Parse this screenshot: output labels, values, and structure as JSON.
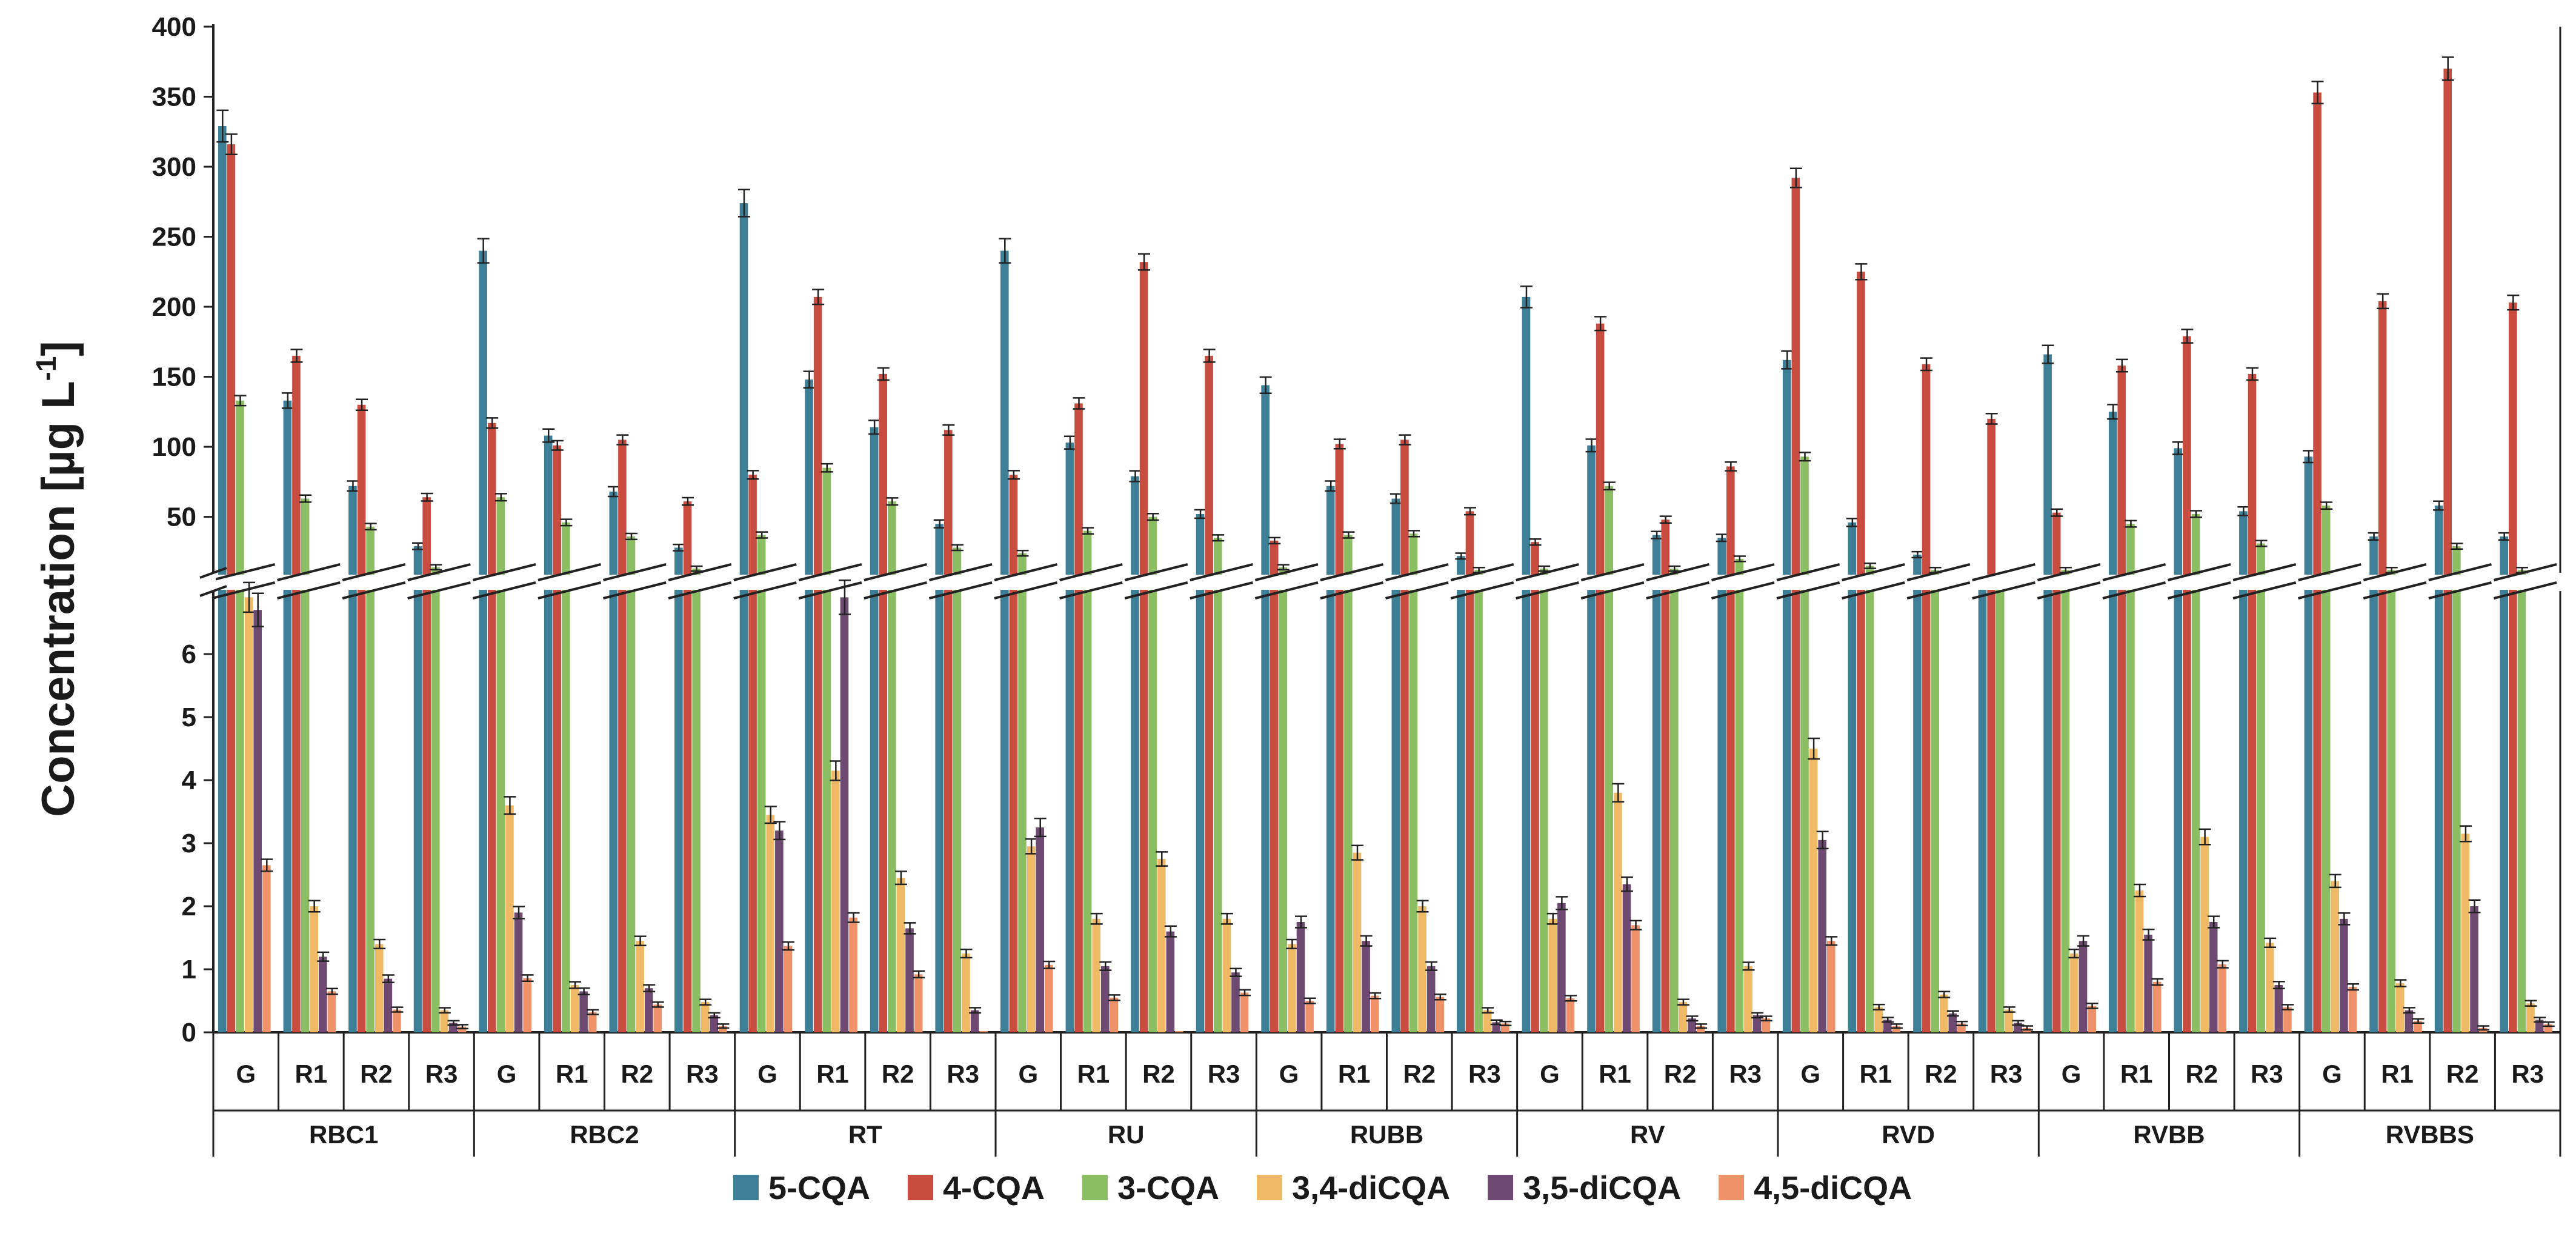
{
  "chart_data": {
    "type": "bar",
    "ylabel": "Concentration [µg L",
    "ylabel_sup": "-1",
    "axis_break": true,
    "upper_axis": {
      "ylim": [
        10,
        400
      ],
      "ticks": [
        50,
        100,
        150,
        200,
        250,
        300,
        350,
        400
      ]
    },
    "lower_axis": {
      "ylim": [
        0,
        7
      ],
      "ticks": [
        0,
        1,
        2,
        3,
        4,
        5,
        6
      ]
    },
    "group_names": [
      "RBC1",
      "RBC2",
      "RT",
      "RU",
      "RUBB",
      "RV",
      "RVD",
      "RVBB",
      "RVBBS"
    ],
    "sub_names": [
      "G",
      "R1",
      "R2",
      "R3"
    ],
    "series": [
      {
        "name": "5-CQA",
        "color": "#3d7f96",
        "values": [
          329,
          133,
          72,
          29,
          240,
          108,
          68,
          28,
          274,
          148,
          114,
          45,
          240,
          103,
          79,
          52,
          144,
          72,
          63,
          22,
          207,
          101,
          37,
          35,
          162,
          46,
          23,
          10,
          166,
          125,
          99,
          54,
          93,
          36,
          58,
          36
        ]
      },
      {
        "name": "4-CQA",
        "color": "#c84c3f",
        "values": [
          316,
          165,
          130,
          64,
          117,
          101,
          105,
          61,
          80,
          207,
          152,
          112,
          80,
          131,
          232,
          165,
          33,
          102,
          105,
          54,
          32,
          188,
          48,
          86,
          292,
          225,
          159,
          120,
          53,
          158,
          179,
          152,
          353,
          204,
          370,
          203
        ]
      },
      {
        "name": "3-CQA",
        "color": "#8bbd62",
        "values": [
          133,
          63,
          43,
          14,
          64,
          46,
          36,
          13,
          37,
          85,
          61,
          28,
          24,
          40,
          50,
          35,
          14,
          37,
          38,
          12,
          13,
          72,
          13,
          20,
          93,
          15,
          12,
          8,
          12,
          45,
          52,
          31,
          58,
          12,
          29,
          12
        ]
      },
      {
        "name": "3,4-diCQA",
        "color": "#f0b966",
        "values": [
          6.9,
          2.0,
          1.4,
          0.35,
          3.6,
          0.75,
          1.45,
          0.48,
          3.45,
          4.15,
          2.45,
          1.25,
          2.95,
          1.8,
          2.75,
          1.8,
          1.4,
          2.85,
          2.0,
          0.35,
          1.8,
          3.8,
          0.48,
          1.05,
          4.5,
          0.4,
          0.6,
          0.36,
          1.25,
          2.25,
          3.1,
          1.42,
          2.4,
          0.78,
          3.15,
          0.46
        ]
      },
      {
        "name": "3,5-diCQA",
        "color": "#6e4a73",
        "values": [
          6.7,
          1.2,
          0.85,
          0.15,
          1.9,
          0.65,
          0.7,
          0.27,
          3.2,
          6.9,
          1.65,
          0.35,
          3.25,
          1.05,
          1.6,
          0.95,
          1.75,
          1.45,
          1.05,
          0.16,
          2.05,
          2.35,
          0.22,
          0.27,
          3.05,
          0.2,
          0.3,
          0.15,
          1.45,
          1.55,
          1.75,
          0.75,
          1.8,
          0.35,
          2.0,
          0.2
        ]
      },
      {
        "name": "4,5-diCQA",
        "color": "#ef9169",
        "values": [
          2.65,
          0.65,
          0.36,
          0.09,
          0.86,
          0.32,
          0.44,
          0.1,
          1.37,
          1.82,
          0.92,
          0.02,
          1.07,
          0.55,
          0.02,
          0.63,
          0.5,
          0.58,
          0.56,
          0.14,
          0.54,
          1.7,
          0.1,
          0.22,
          1.45,
          0.1,
          0.14,
          0.07,
          0.42,
          0.8,
          1.08,
          0.4,
          0.72,
          0.18,
          0.07,
          0.13
        ]
      }
    ]
  }
}
